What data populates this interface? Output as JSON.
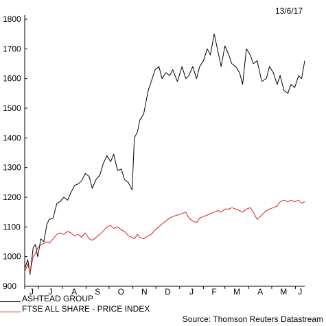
{
  "date_label": "13/6/17",
  "source": "Source: Thomson Reuters Datastream",
  "colors": {
    "ashtead": "#000000",
    "ftse": "#d62020",
    "axis": "#000000"
  },
  "chart_data": {
    "type": "line",
    "title": "",
    "xlabel": "",
    "ylabel": "",
    "ylim": [
      900,
      1800
    ],
    "y_ticks": [
      900,
      1000,
      1100,
      1200,
      1300,
      1400,
      1500,
      1600,
      1700,
      1800
    ],
    "x_range": [
      "2016-06-13",
      "2017-06-13"
    ],
    "x_tick_labels": [
      "J",
      "J",
      "A",
      "S",
      "O",
      "N",
      "D",
      "J",
      "F",
      "M",
      "A",
      "M",
      "J"
    ],
    "x_tick_dates": [
      "2016-06-01",
      "2016-07-01",
      "2016-08-01",
      "2016-09-01",
      "2016-10-01",
      "2016-11-01",
      "2016-12-01",
      "2017-01-01",
      "2017-02-01",
      "2017-03-01",
      "2017-04-01",
      "2017-05-01",
      "2017-06-01"
    ],
    "grid": false,
    "legend_position": "bottom-left",
    "series": [
      {
        "name": "ASHTEAD GROUP",
        "color": "#000000",
        "dates": [
          "2016-06-13",
          "2016-06-17",
          "2016-06-20",
          "2016-06-24",
          "2016-06-27",
          "2016-06-30",
          "2016-07-04",
          "2016-07-08",
          "2016-07-12",
          "2016-07-15",
          "2016-07-20",
          "2016-07-25",
          "2016-07-29",
          "2016-08-03",
          "2016-08-08",
          "2016-08-12",
          "2016-08-17",
          "2016-08-22",
          "2016-08-26",
          "2016-08-31",
          "2016-09-05",
          "2016-09-09",
          "2016-09-14",
          "2016-09-19",
          "2016-09-23",
          "2016-09-28",
          "2016-10-03",
          "2016-10-07",
          "2016-10-12",
          "2016-10-17",
          "2016-10-21",
          "2016-10-26",
          "2016-10-31",
          "2016-11-03",
          "2016-11-07",
          "2016-11-10",
          "2016-11-15",
          "2016-11-21",
          "2016-11-25",
          "2016-11-30",
          "2016-12-05",
          "2016-12-09",
          "2016-12-14",
          "2016-12-19",
          "2016-12-23",
          "2016-12-29",
          "2017-01-04",
          "2017-01-09",
          "2017-01-13",
          "2017-01-18",
          "2017-01-23",
          "2017-01-27",
          "2017-02-01",
          "2017-02-06",
          "2017-02-10",
          "2017-02-15",
          "2017-02-20",
          "2017-02-24",
          "2017-03-01",
          "2017-03-06",
          "2017-03-10",
          "2017-03-15",
          "2017-03-20",
          "2017-03-24",
          "2017-03-29",
          "2017-04-03",
          "2017-04-07",
          "2017-04-12",
          "2017-04-18",
          "2017-04-24",
          "2017-04-28",
          "2017-05-03",
          "2017-05-08",
          "2017-05-12",
          "2017-05-17",
          "2017-05-22",
          "2017-05-26",
          "2017-05-31",
          "2017-06-05",
          "2017-06-09",
          "2017-06-13"
        ],
        "values": [
          960,
          990,
          940,
          1030,
          1040,
          1000,
          1060,
          1050,
          1110,
          1125,
          1130,
          1180,
          1185,
          1200,
          1190,
          1215,
          1240,
          1245,
          1255,
          1280,
          1270,
          1230,
          1260,
          1275,
          1310,
          1340,
          1320,
          1345,
          1290,
          1295,
          1260,
          1250,
          1225,
          1400,
          1420,
          1460,
          1480,
          1560,
          1590,
          1630,
          1640,
          1600,
          1620,
          1610,
          1630,
          1590,
          1640,
          1600,
          1610,
          1640,
          1600,
          1640,
          1660,
          1700,
          1680,
          1750,
          1690,
          1640,
          1710,
          1680,
          1650,
          1640,
          1620,
          1580,
          1700,
          1680,
          1650,
          1660,
          1590,
          1600,
          1640,
          1620,
          1580,
          1610,
          1560,
          1550,
          1580,
          1570,
          1610,
          1600,
          1660
        ]
      },
      {
        "name": "FTSE ALL SHARE - PRICE INDEX",
        "color": "#d62020",
        "dates": [
          "2016-06-13",
          "2016-06-17",
          "2016-06-20",
          "2016-06-24",
          "2016-06-27",
          "2016-06-30",
          "2016-07-04",
          "2016-07-08",
          "2016-07-12",
          "2016-07-15",
          "2016-07-20",
          "2016-07-25",
          "2016-07-29",
          "2016-08-03",
          "2016-08-08",
          "2016-08-12",
          "2016-08-17",
          "2016-08-22",
          "2016-08-26",
          "2016-08-31",
          "2016-09-05",
          "2016-09-09",
          "2016-09-14",
          "2016-09-19",
          "2016-09-23",
          "2016-09-28",
          "2016-10-03",
          "2016-10-07",
          "2016-10-12",
          "2016-10-17",
          "2016-10-21",
          "2016-10-26",
          "2016-10-31",
          "2016-11-03",
          "2016-11-07",
          "2016-11-10",
          "2016-11-15",
          "2016-11-21",
          "2016-11-25",
          "2016-11-30",
          "2016-12-05",
          "2016-12-09",
          "2016-12-14",
          "2016-12-19",
          "2016-12-23",
          "2016-12-29",
          "2017-01-04",
          "2017-01-09",
          "2017-01-13",
          "2017-01-18",
          "2017-01-23",
          "2017-01-27",
          "2017-02-01",
          "2017-02-06",
          "2017-02-10",
          "2017-02-15",
          "2017-02-20",
          "2017-02-24",
          "2017-03-01",
          "2017-03-06",
          "2017-03-10",
          "2017-03-15",
          "2017-03-20",
          "2017-03-24",
          "2017-03-29",
          "2017-04-03",
          "2017-04-07",
          "2017-04-12",
          "2017-04-18",
          "2017-04-24",
          "2017-04-28",
          "2017-05-03",
          "2017-05-08",
          "2017-05-12",
          "2017-05-17",
          "2017-05-22",
          "2017-05-26",
          "2017-05-31",
          "2017-06-05",
          "2017-06-09",
          "2017-06-13"
        ],
        "values": [
          950,
          975,
          945,
          1000,
          1010,
          1030,
          1040,
          1045,
          1050,
          1045,
          1060,
          1075,
          1080,
          1075,
          1085,
          1080,
          1070,
          1075,
          1065,
          1080,
          1060,
          1055,
          1065,
          1075,
          1085,
          1100,
          1105,
          1095,
          1100,
          1090,
          1085,
          1070,
          1065,
          1060,
          1075,
          1065,
          1060,
          1070,
          1075,
          1090,
          1100,
          1110,
          1120,
          1130,
          1135,
          1140,
          1145,
          1150,
          1130,
          1120,
          1115,
          1130,
          1135,
          1140,
          1145,
          1150,
          1155,
          1150,
          1160,
          1160,
          1165,
          1160,
          1155,
          1150,
          1160,
          1165,
          1150,
          1125,
          1140,
          1155,
          1160,
          1165,
          1170,
          1185,
          1190,
          1185,
          1190,
          1185,
          1190,
          1180,
          1185
        ]
      }
    ]
  }
}
